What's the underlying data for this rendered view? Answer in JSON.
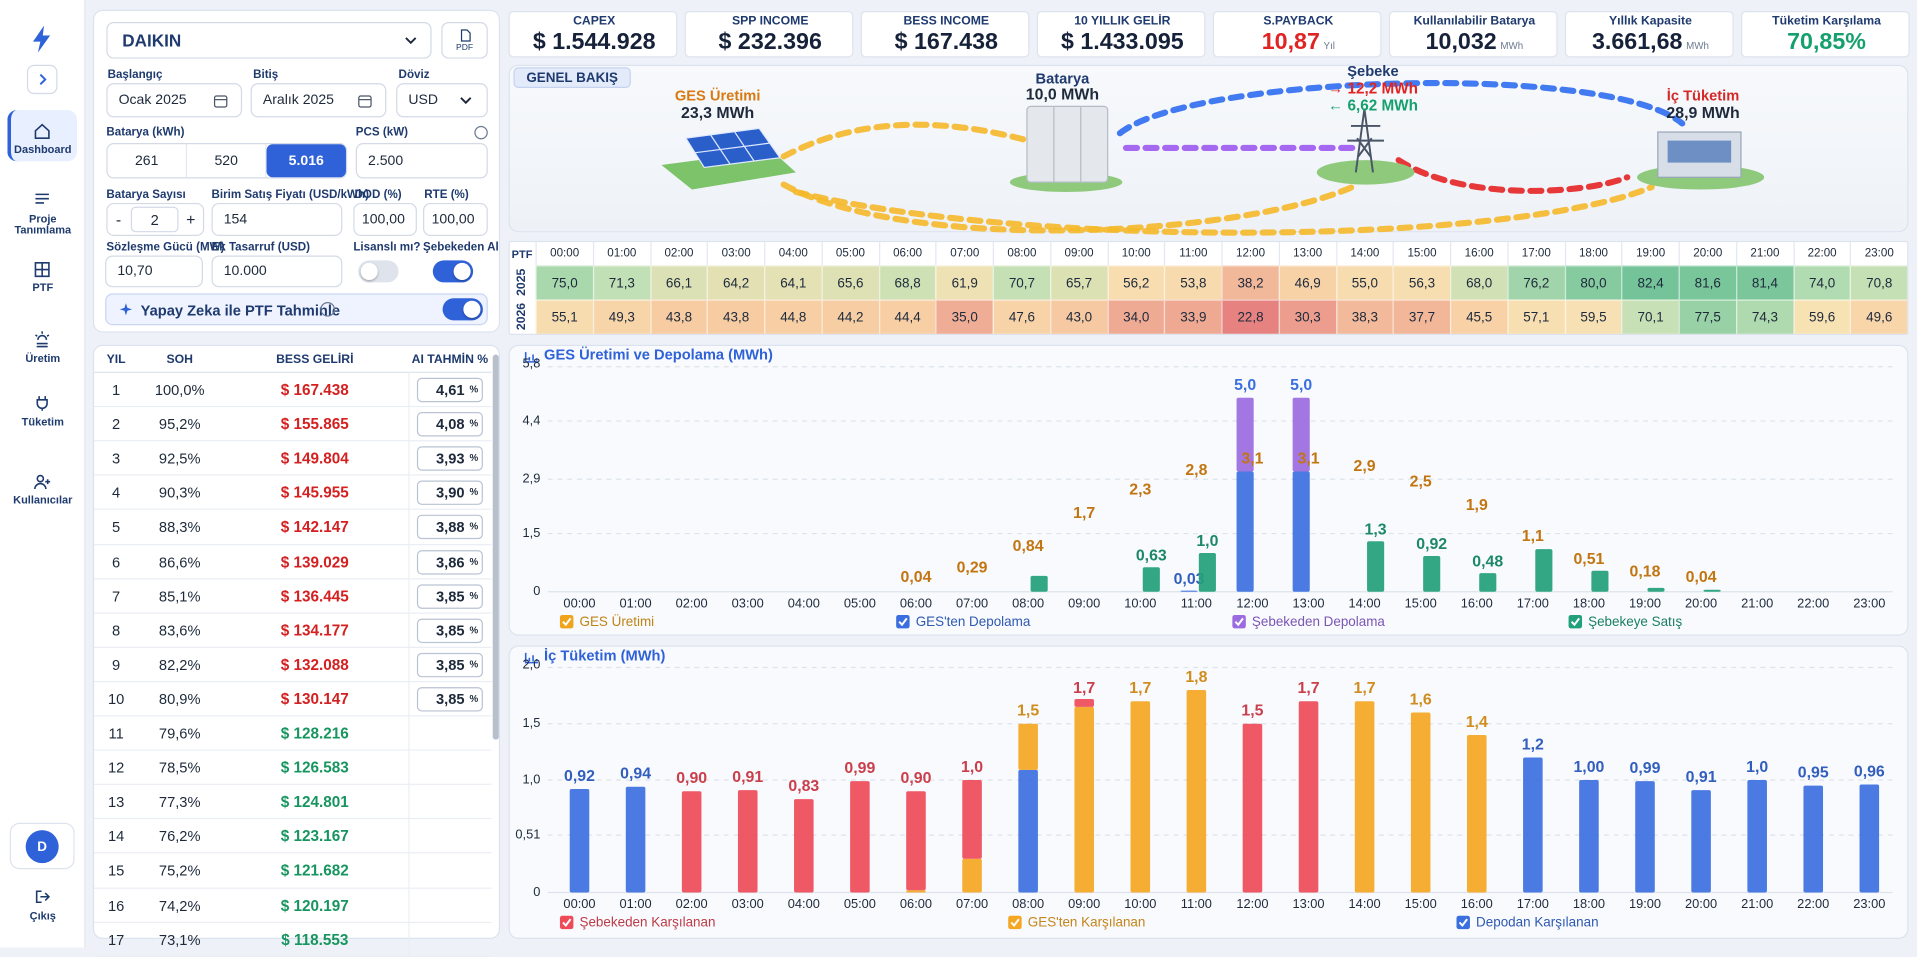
{
  "sidebar": {
    "nav": [
      "Dashboard",
      "Proje Tanımlama",
      "PTF",
      "Üretim",
      "Tüketim",
      "Kullanıcılar"
    ],
    "active": 0,
    "avatar": "D",
    "logout": "Çıkış"
  },
  "form": {
    "company": "DAIKIN",
    "pdf": "PDF",
    "start_label": "Başlangıç",
    "start": "Ocak 2025",
    "end_label": "Bitiş",
    "end": "Aralık 2025",
    "currency_label": "Döviz",
    "currency": "USD",
    "battery_label": "Batarya (kWh)",
    "battery_options": [
      "261",
      "520",
      "5.016"
    ],
    "battery_selected": 2,
    "pcs_label": "PCS (kW)",
    "pcs": "2.500",
    "count_label": "Batarya Sayısı",
    "minus": "-",
    "count": "2",
    "plus": "+",
    "price_label": "Birim Satış Fiyatı (USD/kWh)",
    "price": "154",
    "dod_label": "DOD (%)",
    "dod": "100,00",
    "rte_label": "RTE (%)",
    "rte": "100,00",
    "contract_label": "Sözleşme Gücü (MW)",
    "contract": "10,70",
    "saving_label": "Ek Tasarruf (USD)",
    "saving": "10.000",
    "licensed_label": "Lisanslı mı?",
    "licensed": false,
    "grid_buy_label": "Şebekeden Al",
    "grid_buy": true,
    "ai_label": "Yapay Zeka ile PTF Tahminle",
    "ai": true
  },
  "kpis": [
    {
      "label": "CAPEX",
      "value": "$ 1.544.928"
    },
    {
      "label": "SPP INCOME",
      "value": "$ 232.396"
    },
    {
      "label": "BESS INCOME",
      "value": "$ 167.438"
    },
    {
      "label": "10 YILLIK GELİR",
      "value": "$ 1.433.095"
    },
    {
      "label": "S.PAYBACK",
      "value": "10,87",
      "unit": "Yıl",
      "color": "#e02424"
    },
    {
      "label": "Kullanılabilir Batarya",
      "value": "10,032",
      "unit": "MWh"
    },
    {
      "label": "Yıllık Kapasite",
      "value": "3.661,68",
      "unit": "MWh"
    },
    {
      "label": "Tüketim Karşılama",
      "value": "70,85%",
      "color": "#15a06e"
    }
  ],
  "overview": {
    "title": "GENEL BAKIŞ",
    "ges_label": "GES Üretimi",
    "ges": "23,3 MWh",
    "battery_label": "Batarya",
    "battery": "10,0 MWh",
    "grid_label": "Şebeke",
    "grid_out": "→ 12,2 MWh",
    "grid_in": "← 6,62 MWh",
    "load_label": "İç Tüketim",
    "load": "28,9 MWh"
  },
  "ptf": {
    "header": "PTF",
    "hours": [
      "00:00",
      "01:00",
      "02:00",
      "03:00",
      "04:00",
      "05:00",
      "06:00",
      "07:00",
      "08:00",
      "09:00",
      "10:00",
      "11:00",
      "12:00",
      "13:00",
      "14:00",
      "15:00",
      "16:00",
      "17:00",
      "18:00",
      "19:00",
      "20:00",
      "21:00",
      "22:00",
      "23:00"
    ],
    "rows": [
      {
        "year": "2025",
        "values": [
          "75,0",
          "71,3",
          "66,1",
          "64,2",
          "64,1",
          "65,6",
          "68,8",
          "61,9",
          "70,7",
          "65,7",
          "56,2",
          "53,8",
          "38,2",
          "46,9",
          "55,0",
          "56,3",
          "68,0",
          "76,2",
          "80,0",
          "82,4",
          "81,6",
          "81,4",
          "74,0",
          "70,8"
        ]
      },
      {
        "year": "2026",
        "values": [
          "55,1",
          "49,3",
          "43,8",
          "43,8",
          "44,8",
          "44,2",
          "44,4",
          "35,0",
          "47,6",
          "43,0",
          "34,0",
          "33,9",
          "22,8",
          "30,3",
          "38,3",
          "37,7",
          "45,5",
          "57,1",
          "59,5",
          "70,1",
          "77,5",
          "74,3",
          "59,6",
          "49,6"
        ]
      }
    ]
  },
  "years": {
    "headers": [
      "YIL",
      "SOH",
      "BESS GELİRİ",
      "AI TAHMİN %"
    ],
    "ai_unit": "%",
    "rows": [
      [
        "1",
        "100,0%",
        "$ 167.438",
        "4,61"
      ],
      [
        "2",
        "95,2%",
        "$ 155.865",
        "4,08"
      ],
      [
        "3",
        "92,5%",
        "$ 149.804",
        "3,93"
      ],
      [
        "4",
        "90,3%",
        "$ 145.955",
        "3,90"
      ],
      [
        "5",
        "88,3%",
        "$ 142.147",
        "3,88"
      ],
      [
        "6",
        "86,6%",
        "$ 139.029",
        "3,86"
      ],
      [
        "7",
        "85,1%",
        "$ 136.445",
        "3,85"
      ],
      [
        "8",
        "83,6%",
        "$ 134.177",
        "3,85"
      ],
      [
        "9",
        "82,2%",
        "$ 132.088",
        "3,85"
      ],
      [
        "10",
        "80,9%",
        "$ 130.147",
        "3,85"
      ],
      [
        "11",
        "79,6%",
        "$ 128.216",
        null
      ],
      [
        "12",
        "78,5%",
        "$ 126.583",
        null
      ],
      [
        "13",
        "77,3%",
        "$ 124.801",
        null
      ],
      [
        "14",
        "76,2%",
        "$ 123.167",
        null
      ],
      [
        "15",
        "75,2%",
        "$ 121.682",
        null
      ],
      [
        "16",
        "74,2%",
        "$ 120.197",
        null
      ],
      [
        "17",
        "73,1%",
        "$ 118.553",
        null
      ]
    ]
  },
  "chart_data": [
    {
      "type": "bar_line",
      "title": "GES Üretimi ve Depolama (MWh)",
      "categories": [
        "00:00",
        "01:00",
        "02:00",
        "03:00",
        "04:00",
        "05:00",
        "06:00",
        "07:00",
        "08:00",
        "09:00",
        "10:00",
        "11:00",
        "12:00",
        "13:00",
        "14:00",
        "15:00",
        "16:00",
        "17:00",
        "18:00",
        "19:00",
        "20:00",
        "21:00",
        "22:00",
        "23:00"
      ],
      "ylim": [
        0,
        5.8
      ],
      "yticks": [
        0,
        {
          "value": 1.5,
          "label": "1,5"
        },
        {
          "value": 2.9,
          "label": "2,9"
        },
        {
          "value": 4.4,
          "label": "4,4"
        },
        {
          "value": 5.8,
          "label": "5,8"
        }
      ],
      "grid": true,
      "series": [
        {
          "name": "GES Üretimi",
          "color": "#f0a41c",
          "kind": "line",
          "values": [
            0,
            0,
            0,
            0,
            0,
            0,
            0.04,
            0.29,
            0.84,
            1.7,
            2.3,
            2.8,
            3.1,
            3.1,
            2.9,
            2.5,
            1.9,
            1.1,
            0.51,
            0.18,
            0.04,
            0,
            0,
            0
          ],
          "value_labels": [
            null,
            null,
            null,
            null,
            null,
            null,
            "0,04",
            "0,29",
            "0,84",
            "1,7",
            "2,3",
            "2,8",
            "3,1",
            "3,1",
            "2,9",
            "2,5",
            "1,9",
            "1,1",
            "0,51",
            "0,18",
            "0,04",
            null,
            null,
            null
          ]
        },
        {
          "name": "GES'ten Depolama",
          "color": "#3b6fe0",
          "kind": "bar",
          "stack": "a",
          "values": [
            null,
            null,
            null,
            null,
            null,
            null,
            null,
            null,
            null,
            null,
            null,
            0.03,
            3.1,
            3.1,
            null,
            null,
            null,
            null,
            null,
            null,
            null,
            null,
            null,
            null
          ],
          "value_labels": [
            null,
            null,
            null,
            null,
            null,
            null,
            null,
            null,
            null,
            null,
            null,
            "0,03",
            null,
            null,
            null,
            null,
            null,
            null,
            null,
            null,
            null,
            null,
            null,
            null
          ]
        },
        {
          "name": "Şebekeden Depolama",
          "color": "#9b6be0",
          "kind": "bar",
          "stack": "a",
          "values": [
            null,
            null,
            null,
            null,
            null,
            null,
            null,
            null,
            null,
            null,
            null,
            null,
            1.9,
            1.9,
            null,
            null,
            null,
            null,
            null,
            null,
            null,
            null,
            null,
            null
          ]
        },
        {
          "name": "Şebekeye Satış",
          "color": "#22a07a",
          "kind": "bar",
          "stack": "b",
          "values": [
            null,
            null,
            null,
            null,
            null,
            null,
            null,
            null,
            0.41,
            null,
            0.63,
            1.0,
            null,
            null,
            1.3,
            0.92,
            0.48,
            1.1,
            0.54,
            0.1,
            0.05,
            null,
            null,
            null
          ],
          "value_labels": [
            null,
            null,
            null,
            null,
            null,
            null,
            null,
            null,
            null,
            null,
            "0,63",
            "1,0",
            null,
            null,
            "1,3",
            "0,92",
            "0,48",
            null,
            null,
            null,
            null,
            null,
            null,
            null
          ]
        }
      ],
      "total_values": [
        null,
        null,
        null,
        null,
        null,
        null,
        null,
        null,
        null,
        null,
        null,
        null,
        5.0,
        5.0,
        null,
        null,
        null,
        null,
        null,
        null,
        null,
        null,
        null,
        null
      ],
      "total_labels": [
        null,
        null,
        null,
        null,
        null,
        null,
        null,
        null,
        null,
        null,
        null,
        null,
        "5,0",
        "5,0",
        null,
        null,
        null,
        null,
        null,
        null,
        null,
        null,
        null,
        null
      ]
    },
    {
      "type": "stacked_bar",
      "title": "İç Tüketim (MWh)",
      "categories": [
        "00:00",
        "01:00",
        "02:00",
        "03:00",
        "04:00",
        "05:00",
        "06:00",
        "07:00",
        "08:00",
        "09:00",
        "10:00",
        "11:00",
        "12:00",
        "13:00",
        "14:00",
        "15:00",
        "16:00",
        "17:00",
        "18:00",
        "19:00",
        "20:00",
        "21:00",
        "22:00",
        "23:00"
      ],
      "ylim": [
        0,
        2.0
      ],
      "yticks": [
        0,
        {
          "value": 0.51,
          "label": "0,51"
        },
        {
          "value": 1.0,
          "label": "1,0"
        },
        {
          "value": 1.5,
          "label": "1,5"
        },
        {
          "value": 2.0,
          "label": "2,0"
        }
      ],
      "grid": true,
      "series": [
        {
          "name": "Şebekeden Karşılanan",
          "color": "#ee4a58",
          "values": [
            null,
            null,
            0.9,
            0.91,
            0.83,
            0.99,
            0.88,
            0.7,
            null,
            0.07,
            null,
            null,
            1.5,
            1.7,
            null,
            null,
            null,
            null,
            null,
            null,
            null,
            null,
            null,
            null
          ]
        },
        {
          "name": "GES'ten Karşılanan",
          "color": "#f5a623",
          "values": [
            null,
            null,
            null,
            null,
            null,
            null,
            0.02,
            0.3,
            0.41,
            1.65,
            1.7,
            1.8,
            null,
            null,
            1.7,
            1.6,
            1.4,
            null,
            null,
            null,
            null,
            null,
            null,
            null
          ]
        },
        {
          "name": "Depodan Karşılanan",
          "color": "#3b6fe0",
          "values": [
            0.92,
            0.94,
            null,
            null,
            null,
            null,
            null,
            null,
            1.09,
            null,
            null,
            null,
            null,
            null,
            null,
            null,
            null,
            1.2,
            1.0,
            0.99,
            0.91,
            1.0,
            0.95,
            0.96
          ]
        }
      ],
      "total_values": [
        0.92,
        0.94,
        0.9,
        0.91,
        0.83,
        0.99,
        0.9,
        1.0,
        1.5,
        1.7,
        1.7,
        1.8,
        1.5,
        1.7,
        1.7,
        1.6,
        1.4,
        1.2,
        1.0,
        0.99,
        0.91,
        1.0,
        0.95,
        0.96
      ],
      "total_labels": [
        "0,92",
        "0,94",
        "0,90",
        "0,91",
        "0,83",
        "0,99",
        "0,90",
        "1,0",
        "1,5",
        "1,7",
        "1,7",
        "1,8",
        "1,5",
        "1,7",
        "1,7",
        "1,6",
        "1,4",
        "1,2",
        "1,00",
        "0,99",
        "0,91",
        "1,0",
        "0,95",
        "0,96"
      ]
    }
  ]
}
